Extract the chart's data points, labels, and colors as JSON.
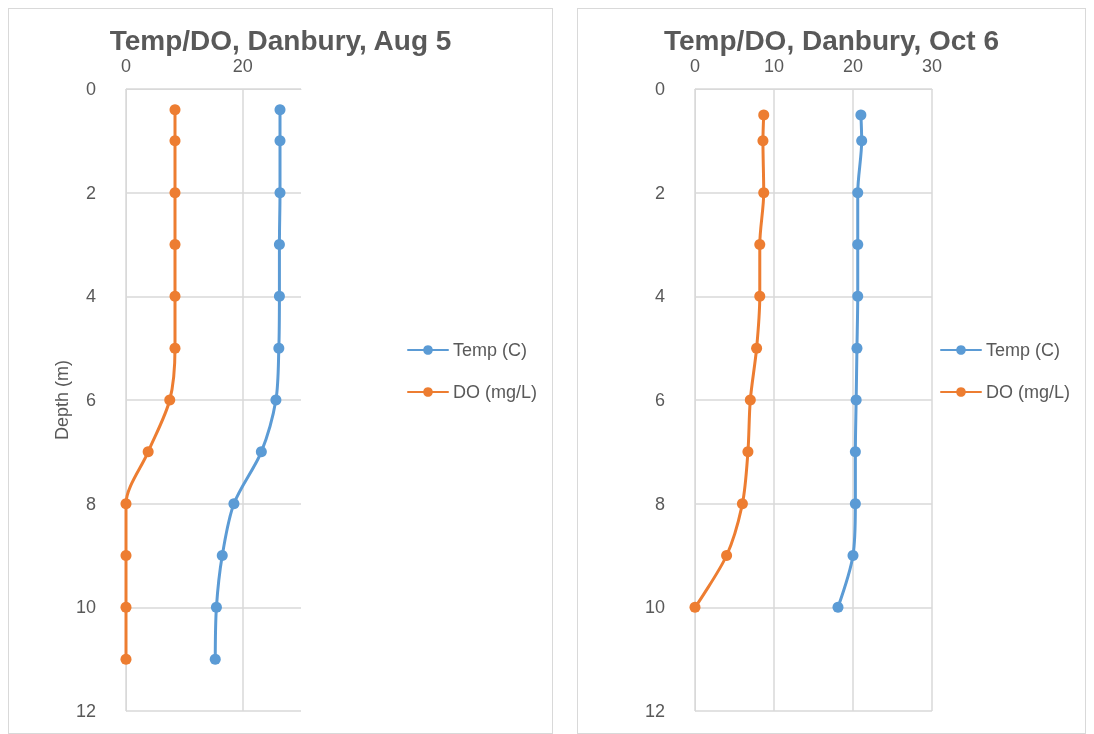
{
  "chart_data": [
    {
      "type": "line",
      "title": "Temp/DO, Danbury, Aug 5",
      "ylabel": "Depth (m)",
      "xlim": [
        0,
        30
      ],
      "xticks": [
        0,
        20
      ],
      "ylim": [
        12,
        0
      ],
      "yticks": [
        0,
        2,
        4,
        6,
        8,
        10,
        12
      ],
      "grid": true,
      "legend": "right",
      "marker": "circle",
      "line_style": "solid",
      "series": [
        {
          "name": "Temp (C)",
          "color": "#5b9bd5",
          "x": [
            26.4,
            26.4,
            26.4,
            26.3,
            26.3,
            26.2,
            25.7,
            23.2,
            18.5,
            16.5,
            15.5,
            15.3
          ],
          "values": [
            0.4,
            1,
            2,
            3,
            4,
            5,
            6,
            7,
            8,
            9,
            10,
            11
          ]
        },
        {
          "name": "DO (mg/L)",
          "color": "#ed7d31",
          "x": [
            8.4,
            8.4,
            8.4,
            8.4,
            8.4,
            8.4,
            7.5,
            3.8,
            0,
            0,
            0,
            0
          ],
          "values": [
            0.4,
            1,
            2,
            3,
            4,
            5,
            6,
            7,
            8,
            9,
            10,
            11
          ]
        }
      ]
    },
    {
      "type": "line",
      "title": "Temp/DO, Danbury, Oct 6",
      "xlim": [
        0,
        30
      ],
      "xticks": [
        0,
        10,
        20,
        30
      ],
      "ylim": [
        12,
        0
      ],
      "yticks": [
        0,
        2,
        4,
        6,
        8,
        10,
        12
      ],
      "grid": true,
      "legend": "right",
      "marker": "circle",
      "line_style": "solid",
      "series": [
        {
          "name": "Temp (C)",
          "color": "#5b9bd5",
          "x": [
            21.0,
            21.1,
            20.6,
            20.6,
            20.6,
            20.5,
            20.4,
            20.3,
            20.3,
            20.0,
            18.1
          ],
          "values": [
            0.5,
            1,
            2,
            3,
            4,
            5,
            6,
            7,
            8,
            9,
            10
          ]
        },
        {
          "name": "DO (mg/L)",
          "color": "#ed7d31",
          "x": [
            8.7,
            8.6,
            8.7,
            8.2,
            8.2,
            7.8,
            7.0,
            6.7,
            6.0,
            4.0,
            0
          ],
          "values": [
            0.5,
            1,
            2,
            3,
            4,
            5,
            6,
            7,
            8,
            9,
            10
          ]
        }
      ]
    }
  ]
}
